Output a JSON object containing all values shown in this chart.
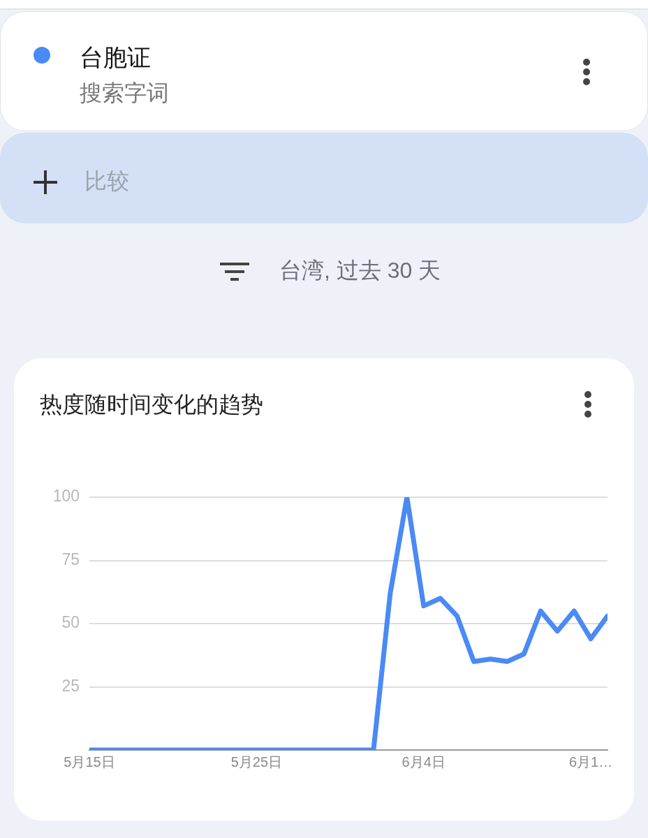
{
  "chart_data": {
    "type": "line",
    "title": "热度随时间变化的趋势",
    "annotations": [
      "搜索字词",
      "比较",
      "台湾, 过去 30 天"
    ],
    "x": [
      "--05-15",
      "--05-16",
      "--05-17",
      "--05-18",
      "--05-19",
      "--05-20",
      "--05-21",
      "--05-22",
      "--05-23",
      "--05-24",
      "--05-25",
      "--05-26",
      "--05-27",
      "--05-28",
      "--05-29",
      "--05-30",
      "--05-31",
      "--06-01",
      "--06-02",
      "--06-03",
      "--06-04",
      "--06-05",
      "--06-06",
      "--06-07",
      "--06-08",
      "--06-09",
      "--06-10",
      "--06-11",
      "--06-12",
      "--06-13",
      "--06-14",
      "--06-15"
    ],
    "series": [
      {
        "name": "台胞证",
        "color": "#4a8af4",
        "values": [
          0,
          0,
          0,
          0,
          0,
          0,
          0,
          0,
          0,
          0,
          0,
          0,
          0,
          0,
          0,
          0,
          0,
          0,
          62,
          100,
          57,
          60,
          53,
          35,
          36,
          35,
          38,
          55,
          47,
          55,
          44,
          53
        ]
      }
    ],
    "xlim": [
      "--05-15",
      "--06-15"
    ],
    "xticks": [
      {
        "value": "--05-15",
        "label": "5月15日"
      },
      {
        "value": "--05-25",
        "label": "5月25日"
      },
      {
        "value": "--06-04",
        "label": "6月4日"
      },
      {
        "value": "--06-14",
        "label": "6月1…"
      }
    ],
    "ylim": [
      0,
      100
    ],
    "yticks": [
      25,
      50,
      75,
      100
    ],
    "grid": "y",
    "legend": "top",
    "marker": "none",
    "line_style": "solid"
  }
}
